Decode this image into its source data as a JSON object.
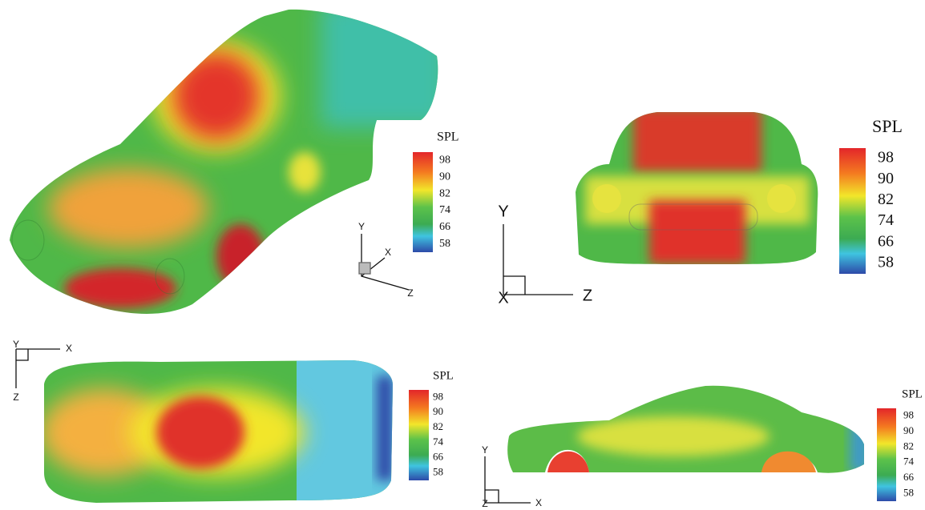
{
  "panels": [
    {
      "legend": {
        "title": "SPL",
        "ticks": [
          98,
          90,
          82,
          74,
          66,
          58
        ]
      },
      "axes": [
        "Y",
        "X",
        "Z"
      ]
    },
    {
      "legend": {
        "title": "SPL",
        "ticks": [
          98,
          90,
          82,
          74,
          66,
          58
        ]
      },
      "axes": [
        "Y",
        "X",
        "Z"
      ]
    },
    {
      "legend": {
        "title": "SPL",
        "ticks": [
          98,
          90,
          82,
          74,
          66,
          58
        ]
      },
      "axes": [
        "Y",
        "X",
        "Z"
      ]
    },
    {
      "legend": {
        "title": "SPL",
        "ticks": [
          98,
          90,
          82,
          74,
          66,
          58
        ]
      },
      "axes": [
        "Y",
        "X",
        "Z"
      ]
    }
  ]
}
